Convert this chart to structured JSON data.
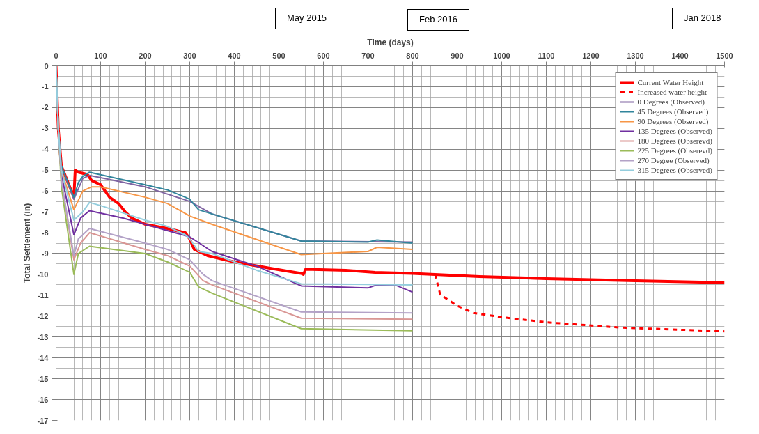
{
  "chart_data": {
    "type": "line",
    "xlabel": "Time (days)",
    "ylabel": "Total Settlement (in)",
    "xlim": [
      0,
      1500
    ],
    "ylim": [
      -17,
      0
    ],
    "xticks": [
      0,
      100,
      200,
      300,
      400,
      500,
      600,
      700,
      800,
      900,
      1000,
      1100,
      1200,
      1300,
      1400,
      1500
    ],
    "yticks": [
      0,
      -1,
      -2,
      -3,
      -4,
      -5,
      -6,
      -7,
      -8,
      -9,
      -10,
      -11,
      -12,
      -13,
      -14,
      -15,
      -16,
      -17
    ],
    "grid": true,
    "legend": "top right",
    "line_style": "solid",
    "marker": "none",
    "annotations": [
      "May 2015",
      "Feb 2016",
      "Jan 2018"
    ],
    "series": [
      {
        "name": "Current Water Height",
        "color": "#ff0000",
        "x": [
          0,
          5,
          12,
          40,
          43,
          50,
          70,
          80,
          100,
          120,
          140,
          155,
          170,
          200,
          250,
          290,
          300,
          310,
          340,
          400,
          480,
          550,
          555,
          560,
          650,
          716,
          800,
          850,
          950,
          1100,
          1300,
          1500
        ],
        "values": [
          0,
          -3,
          -4.8,
          -6.3,
          -5.0,
          -5.1,
          -5.2,
          -5.5,
          -5.7,
          -6.3,
          -6.6,
          -7.0,
          -7.3,
          -7.6,
          -7.8,
          -8.0,
          -8.3,
          -8.8,
          -9.1,
          -9.4,
          -9.7,
          -9.95,
          -10.0,
          -9.75,
          -9.8,
          -9.9,
          -9.95,
          -10.0,
          -10.1,
          -10.2,
          -10.3,
          -10.4
        ]
      },
      {
        "name": "Increased water height",
        "color": "#ff0000",
        "line_style": "dashed",
        "x": [
          851,
          862,
          900,
          937,
          1000,
          1103,
          1268,
          1500
        ],
        "values": [
          -10.0,
          -10.97,
          -11.5,
          -11.85,
          -12.05,
          -12.3,
          -12.55,
          -12.73
        ]
      },
      {
        "name": "0 Degrees (Observed)",
        "color": "#8064a2",
        "x": [
          0,
          5,
          12,
          40,
          60,
          75,
          200,
          300,
          350,
          550,
          800
        ],
        "values": [
          0,
          -3,
          -4.8,
          -6.4,
          -5.4,
          -5.25,
          -5.8,
          -6.5,
          -7.1,
          -8.4,
          -8.45
        ]
      },
      {
        "name": "45 Degrees (Observed)",
        "color": "#31859c",
        "x": [
          0,
          5,
          12,
          40,
          50,
          60,
          75,
          200,
          250,
          290,
          300,
          320,
          350,
          550,
          700,
          720,
          800
        ],
        "values": [
          0,
          -3,
          -4.8,
          -6.3,
          -5.6,
          -5.3,
          -5.1,
          -5.7,
          -5.95,
          -6.3,
          -6.4,
          -6.9,
          -7.1,
          -8.4,
          -8.45,
          -8.35,
          -8.5
        ]
      },
      {
        "name": "90 Degrees (Observed)",
        "color": "#f79646",
        "x": [
          0,
          5,
          12,
          40,
          60,
          80,
          100,
          200,
          250,
          300,
          350,
          550,
          700,
          720,
          800
        ],
        "values": [
          0,
          -3,
          -5.0,
          -6.9,
          -6.0,
          -5.8,
          -5.8,
          -6.3,
          -6.6,
          -7.2,
          -7.6,
          -9.05,
          -8.9,
          -8.7,
          -8.8
        ]
      },
      {
        "name": "135 Degrees (Observed)",
        "color": "#7030a0",
        "x": [
          0,
          5,
          12,
          40,
          55,
          75,
          150,
          200,
          300,
          350,
          450,
          550,
          700,
          720,
          760,
          800
        ],
        "values": [
          0,
          -3,
          -5.2,
          -8.1,
          -7.3,
          -6.95,
          -7.3,
          -7.6,
          -8.2,
          -8.9,
          -9.6,
          -10.55,
          -10.65,
          -10.5,
          -10.5,
          -10.85
        ]
      },
      {
        "name": "180 Degrees (Obserevd)",
        "color": "#d99694",
        "x": [
          0,
          5,
          12,
          40,
          55,
          75,
          200,
          250,
          300,
          330,
          350,
          550,
          800
        ],
        "values": [
          0,
          -3,
          -5.5,
          -9.3,
          -8.5,
          -8.0,
          -8.8,
          -9.1,
          -9.6,
          -10.3,
          -10.5,
          -12.1,
          -12.15
        ]
      },
      {
        "name": "225 Degrees (Obserevd)",
        "color": "#9bbb59",
        "x": [
          0,
          5,
          12,
          40,
          50,
          75,
          200,
          250,
          300,
          320,
          350,
          550,
          800
        ],
        "values": [
          0,
          -3,
          -5.8,
          -10.0,
          -9.0,
          -8.65,
          -9.0,
          -9.4,
          -9.9,
          -10.6,
          -10.9,
          -12.6,
          -12.7
        ]
      },
      {
        "name": "270 Degree (Observed)",
        "color": "#b3a2c7",
        "x": [
          0,
          5,
          12,
          40,
          50,
          75,
          200,
          250,
          300,
          330,
          350,
          550,
          800
        ],
        "values": [
          0,
          -3,
          -5.5,
          -9.1,
          -8.3,
          -7.8,
          -8.5,
          -8.8,
          -9.3,
          -10.0,
          -10.3,
          -11.8,
          -11.85
        ]
      },
      {
        "name": "315 Degrees (Observed)",
        "color": "#93cddd",
        "x": [
          0,
          5,
          12,
          40,
          60,
          75,
          100,
          200,
          250,
          290,
          300,
          320,
          350,
          450,
          550,
          800
        ],
        "values": [
          0,
          -3,
          -5.0,
          -7.4,
          -7.0,
          -6.55,
          -6.7,
          -7.4,
          -7.7,
          -8.1,
          -8.3,
          -8.9,
          -9.0,
          -9.8,
          -10.45,
          -10.5
        ]
      }
    ]
  }
}
